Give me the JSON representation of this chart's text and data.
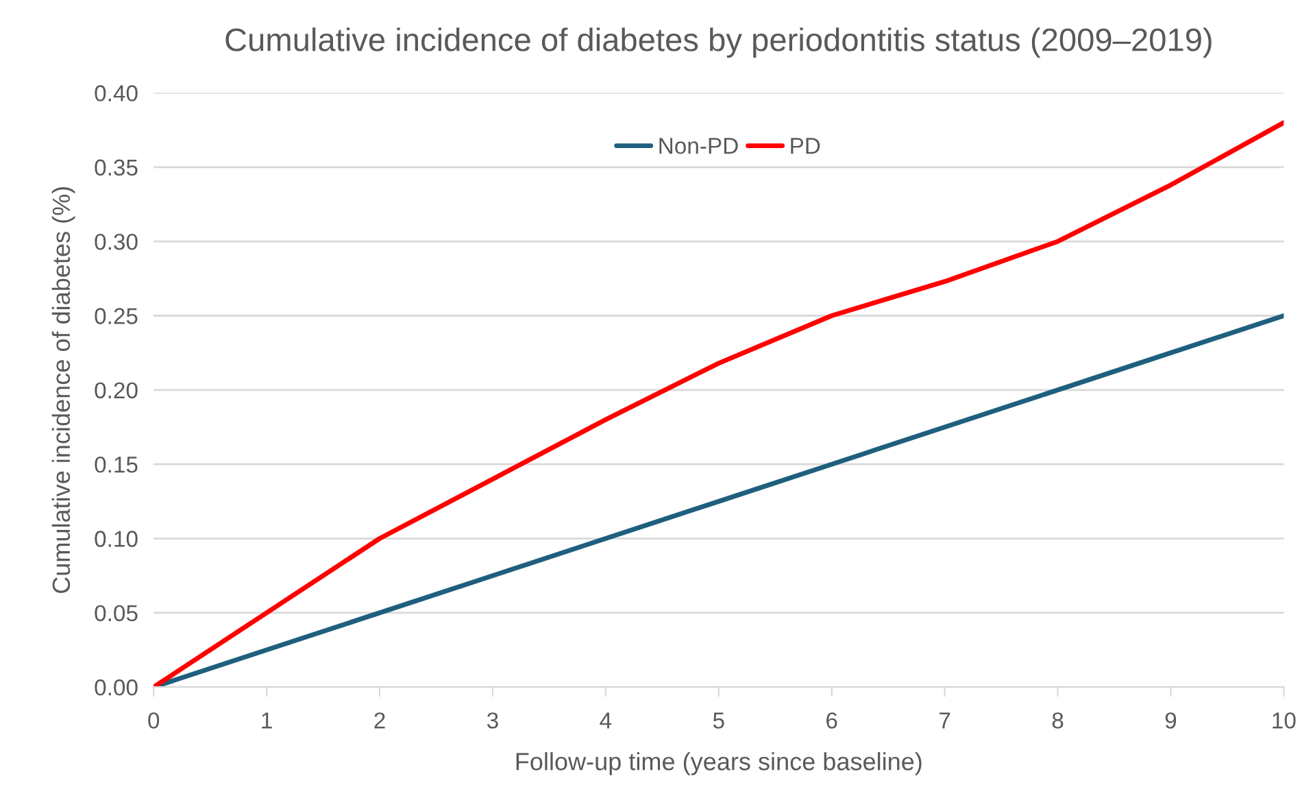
{
  "chart_data": {
    "type": "line",
    "title": "Cumulative incidence of diabetes by periodontitis status (2009–2019)",
    "xlabel": "Follow-up time (years since baseline)",
    "ylabel": "Cumulative incidence of diabetes (%)",
    "x": [
      0,
      1,
      2,
      3,
      4,
      5,
      6,
      7,
      8,
      9,
      10
    ],
    "series": [
      {
        "name": "Non-PD",
        "color": "#1f5f7e",
        "values": [
          0,
          0.025,
          0.05,
          0.075,
          0.1,
          0.125,
          0.15,
          0.175,
          0.2,
          0.225,
          0.25
        ]
      },
      {
        "name": "PD",
        "color": "#ff0000",
        "values": [
          0,
          0.05,
          0.1,
          0.14,
          0.18,
          0.218,
          0.25,
          0.273,
          0.3,
          0.338,
          0.38
        ]
      }
    ],
    "xlim": [
      0,
      10
    ],
    "xticks": [
      0,
      1,
      2,
      3,
      4,
      5,
      6,
      7,
      8,
      9,
      10
    ],
    "ylim": [
      0,
      0.4
    ],
    "yticks": [
      {
        "value": 0,
        "label": "0.00"
      },
      {
        "value": 0.05,
        "label": "0.05"
      },
      {
        "value": 0.1,
        "label": "0.10"
      },
      {
        "value": 0.15,
        "label": "0.15"
      },
      {
        "value": 0.2,
        "label": "0.20"
      },
      {
        "value": 0.25,
        "label": "0.25"
      },
      {
        "value": 0.3,
        "label": "0.30"
      },
      {
        "value": 0.35,
        "label": "0.35"
      },
      {
        "value": 0.4,
        "label": "0.40"
      }
    ],
    "grid": "y",
    "legend": "top",
    "line_style": "solid",
    "marker": "none"
  }
}
